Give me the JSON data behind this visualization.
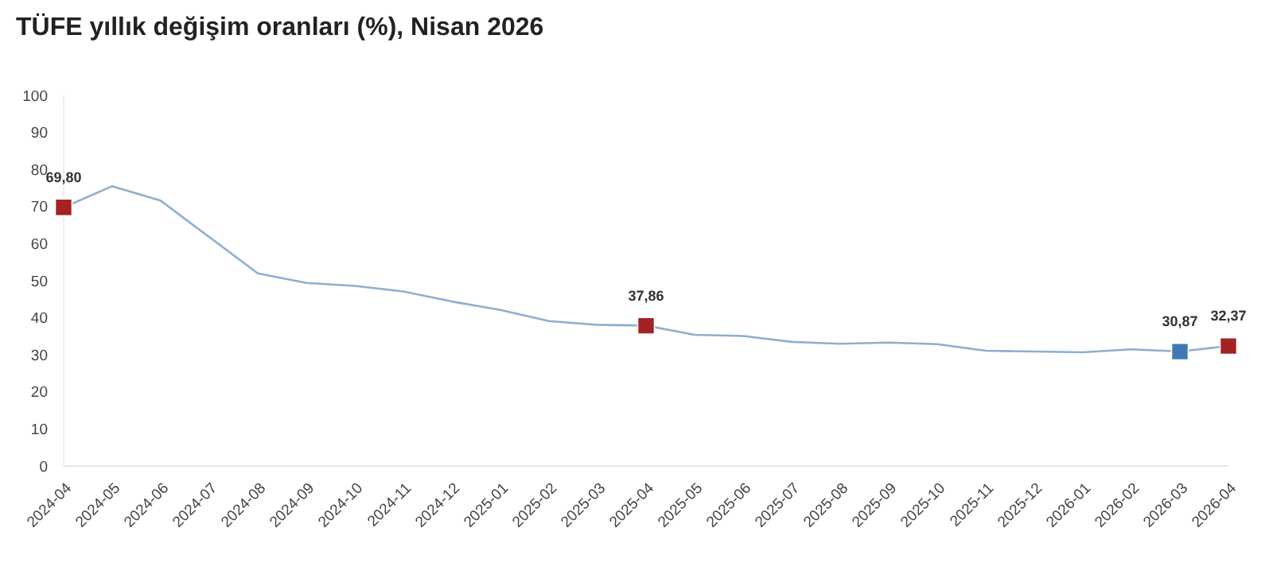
{
  "chart_data": {
    "type": "line",
    "title": "TÜFE yıllık değişim oranları (%), Nisan 2026",
    "categories": [
      "2024-04",
      "2024-05",
      "2024-06",
      "2024-07",
      "2024-08",
      "2024-09",
      "2024-10",
      "2024-11",
      "2024-12",
      "2025-01",
      "2025-02",
      "2025-03",
      "2025-04",
      "2025-05",
      "2025-06",
      "2025-07",
      "2025-08",
      "2025-09",
      "2025-10",
      "2025-11",
      "2025-12",
      "2026-01",
      "2026-02",
      "2026-03",
      "2026-04"
    ],
    "series": [
      {
        "color": "#8eaed0",
        "marker": "none",
        "values": [
          69.8,
          75.5,
          71.6,
          61.8,
          52.0,
          49.4,
          48.6,
          47.1,
          44.4,
          42.1,
          39.1,
          38.1,
          37.9,
          35.4,
          35.1,
          33.5,
          33.0,
          33.3,
          32.9,
          31.1,
          30.9,
          30.7,
          31.5,
          30.9,
          32.4
        ]
      },
      {
        "type": "scatter",
        "marker": "square",
        "values": [
          69.8,
          null,
          null,
          null,
          null,
          null,
          null,
          null,
          null,
          null,
          null,
          null,
          37.86,
          null,
          null,
          null,
          null,
          null,
          null,
          null,
          null,
          null,
          null,
          30.87,
          32.37
        ],
        "colors": [
          "#a32323",
          null,
          null,
          null,
          null,
          null,
          null,
          null,
          null,
          null,
          null,
          null,
          "#a32323",
          null,
          null,
          null,
          null,
          null,
          null,
          null,
          null,
          null,
          null,
          "#3f78b5",
          "#a32323"
        ],
        "value_labels": [
          "69,80",
          null,
          null,
          null,
          null,
          null,
          null,
          null,
          null,
          null,
          null,
          null,
          "37,86",
          null,
          null,
          null,
          null,
          null,
          null,
          null,
          null,
          null,
          null,
          "30,87",
          "32,37"
        ]
      }
    ],
    "ylim": [
      0,
      100
    ],
    "yticks": [
      0,
      10,
      20,
      30,
      40,
      50,
      60,
      70,
      80,
      90,
      100
    ],
    "grid": false
  }
}
